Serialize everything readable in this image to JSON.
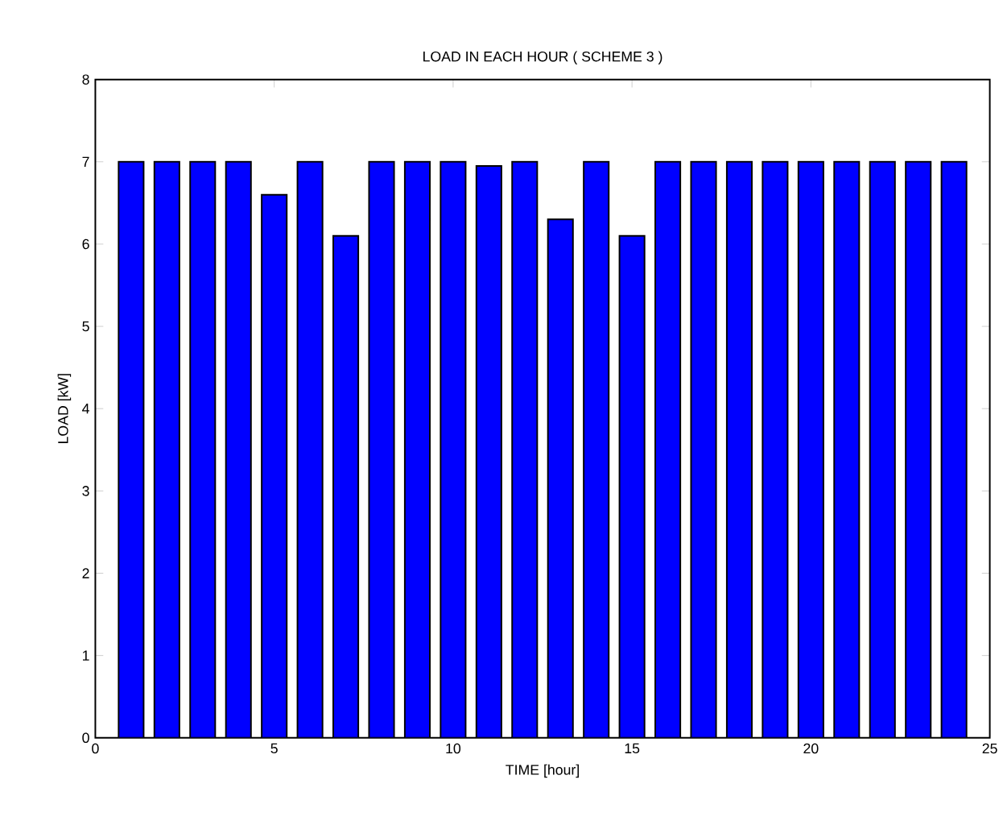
{
  "chart_data": {
    "type": "bar",
    "title": "LOAD IN EACH HOUR ( SCHEME 3 )",
    "xlabel": "TIME [hour]",
    "ylabel": "LOAD [kW]",
    "x": [
      1,
      2,
      3,
      4,
      5,
      6,
      7,
      8,
      9,
      10,
      11,
      12,
      13,
      14,
      15,
      16,
      17,
      18,
      19,
      20,
      21,
      22,
      23,
      24
    ],
    "values": [
      7,
      7,
      7,
      7,
      6.6,
      7,
      6.1,
      7,
      7,
      7,
      6.95,
      7,
      6.3,
      7,
      6.1,
      7,
      7,
      7,
      7,
      7,
      7,
      7,
      7,
      7
    ],
    "color": "#0000ff",
    "xlim": [
      0,
      25
    ],
    "xticks": [
      0,
      5,
      10,
      15,
      20,
      25
    ],
    "ylim": [
      0,
      8
    ],
    "yticks": [
      0,
      1,
      2,
      3,
      4,
      5,
      6,
      7,
      8
    ]
  }
}
